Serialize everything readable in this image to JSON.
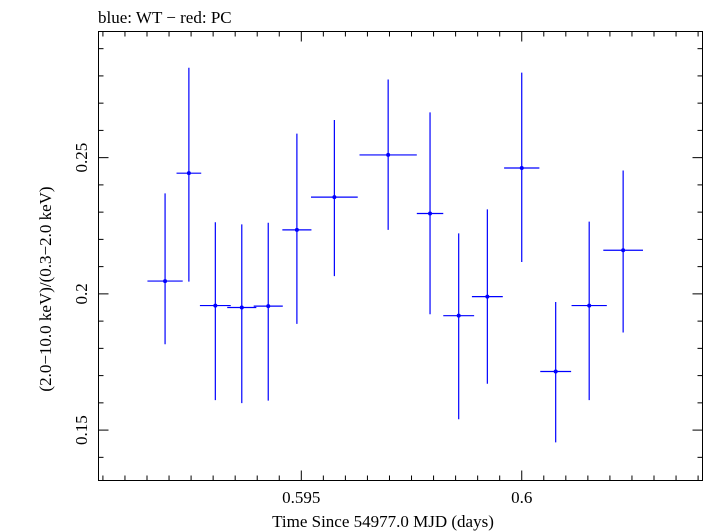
{
  "chart_data": {
    "type": "scatter",
    "title": "blue: WT − red: PC",
    "xlabel": "Time Since 54977.0 MJD (days)",
    "ylabel": "(2.0−10.0 keV)/(0.3−2.0 keV)",
    "xlim": [
      0.5904,
      0.6041
    ],
    "ylim": [
      0.1315,
      0.2963
    ],
    "x_major_ticks": [
      0.595,
      0.6
    ],
    "x_tick_labels": [
      "0.595",
      "0.6"
    ],
    "y_major_ticks": [
      0.15,
      0.2,
      0.25
    ],
    "y_tick_labels": [
      "0.15",
      "0.2",
      "0.25"
    ],
    "grid": false,
    "series": [
      {
        "name": "WT",
        "color": "#0000ff",
        "points": [
          {
            "x": 0.59191,
            "xerr": 0.0004,
            "y": 0.2047,
            "yerr_low": 0.0232,
            "yerr_high": 0.0322
          },
          {
            "x": 0.59245,
            "xerr": 0.00028,
            "y": 0.2443,
            "yerr_low": 0.0398,
            "yerr_high": 0.0387
          },
          {
            "x": 0.59305,
            "xerr": 0.00035,
            "y": 0.1957,
            "yerr_low": 0.0347,
            "yerr_high": 0.0306
          },
          {
            "x": 0.59365,
            "xerr": 0.00033,
            "y": 0.195,
            "yerr_low": 0.0351,
            "yerr_high": 0.0305
          },
          {
            "x": 0.59425,
            "xerr": 0.00033,
            "y": 0.1955,
            "yerr_low": 0.0347,
            "yerr_high": 0.0306
          },
          {
            "x": 0.5949,
            "xerr": 0.00033,
            "y": 0.2235,
            "yerr_low": 0.0345,
            "yerr_high": 0.0353
          },
          {
            "x": 0.59575,
            "xerr": 0.00053,
            "y": 0.2355,
            "yerr_low": 0.029,
            "yerr_high": 0.0283
          },
          {
            "x": 0.59697,
            "xerr": 0.00065,
            "y": 0.251,
            "yerr_low": 0.0275,
            "yerr_high": 0.0277
          },
          {
            "x": 0.59792,
            "xerr": 0.0003,
            "y": 0.2295,
            "yerr_low": 0.037,
            "yerr_high": 0.0371
          },
          {
            "x": 0.59857,
            "xerr": 0.00035,
            "y": 0.192,
            "yerr_low": 0.038,
            "yerr_high": 0.0302
          },
          {
            "x": 0.59922,
            "xerr": 0.00035,
            "y": 0.199,
            "yerr_low": 0.032,
            "yerr_high": 0.032
          },
          {
            "x": 0.6,
            "xerr": 0.0004,
            "y": 0.2462,
            "yerr_low": 0.0345,
            "yerr_high": 0.035
          },
          {
            "x": 0.60077,
            "xerr": 0.00035,
            "y": 0.1715,
            "yerr_low": 0.026,
            "yerr_high": 0.0255
          },
          {
            "x": 0.60153,
            "xerr": 0.0004,
            "y": 0.1957,
            "yerr_low": 0.0347,
            "yerr_high": 0.0308
          },
          {
            "x": 0.6023,
            "xerr": 0.00045,
            "y": 0.216,
            "yerr_low": 0.0302,
            "yerr_high": 0.0293
          }
        ]
      }
    ]
  }
}
